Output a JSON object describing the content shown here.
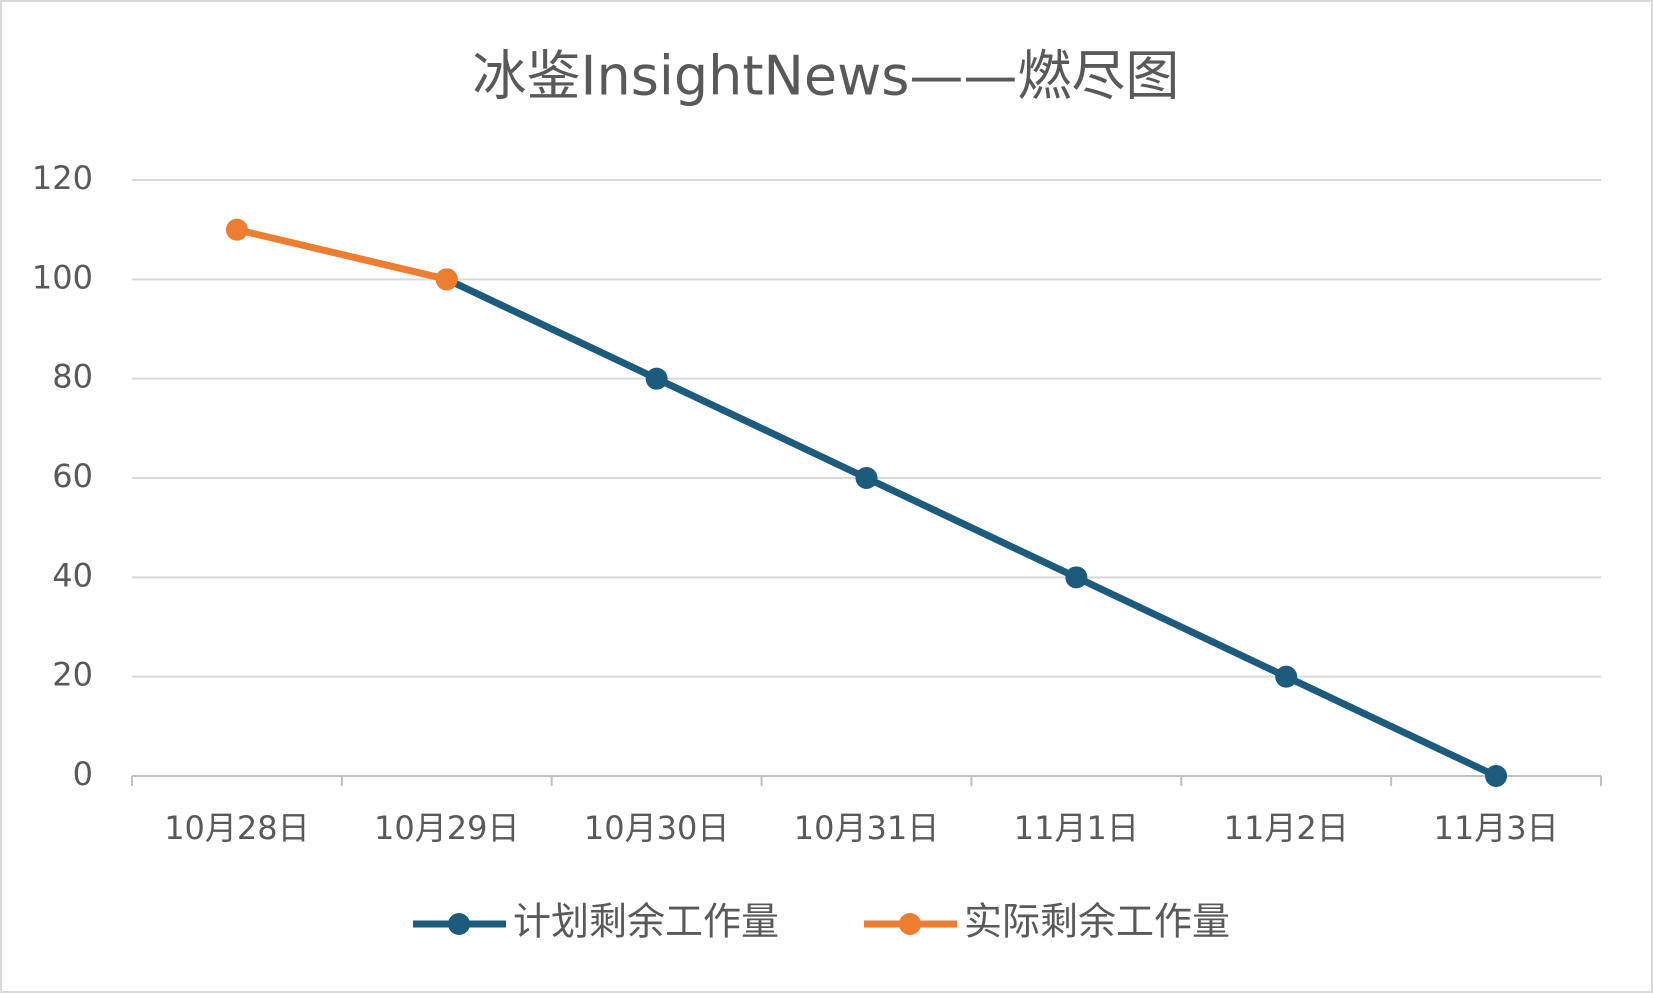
{
  "chart_data": {
    "type": "line",
    "title": "冰鉴InsightNews——燃尽图",
    "categories": [
      "10月28日",
      "10月29日",
      "10月30日",
      "10月31日",
      "11月1日",
      "11月2日",
      "11月3日"
    ],
    "series": [
      {
        "name": "计划剩余工作量",
        "color": "#1d5b7c",
        "values": [
          null,
          100,
          80,
          60,
          40,
          20,
          0
        ]
      },
      {
        "name": "实际剩余工作量",
        "color": "#ed7d31",
        "values": [
          110,
          100,
          null,
          null,
          null,
          null,
          null
        ]
      }
    ],
    "ylim": [
      0,
      120
    ],
    "yticks": [
      0,
      20,
      40,
      60,
      80,
      100,
      120
    ],
    "grid": true,
    "legend": "bottom"
  }
}
